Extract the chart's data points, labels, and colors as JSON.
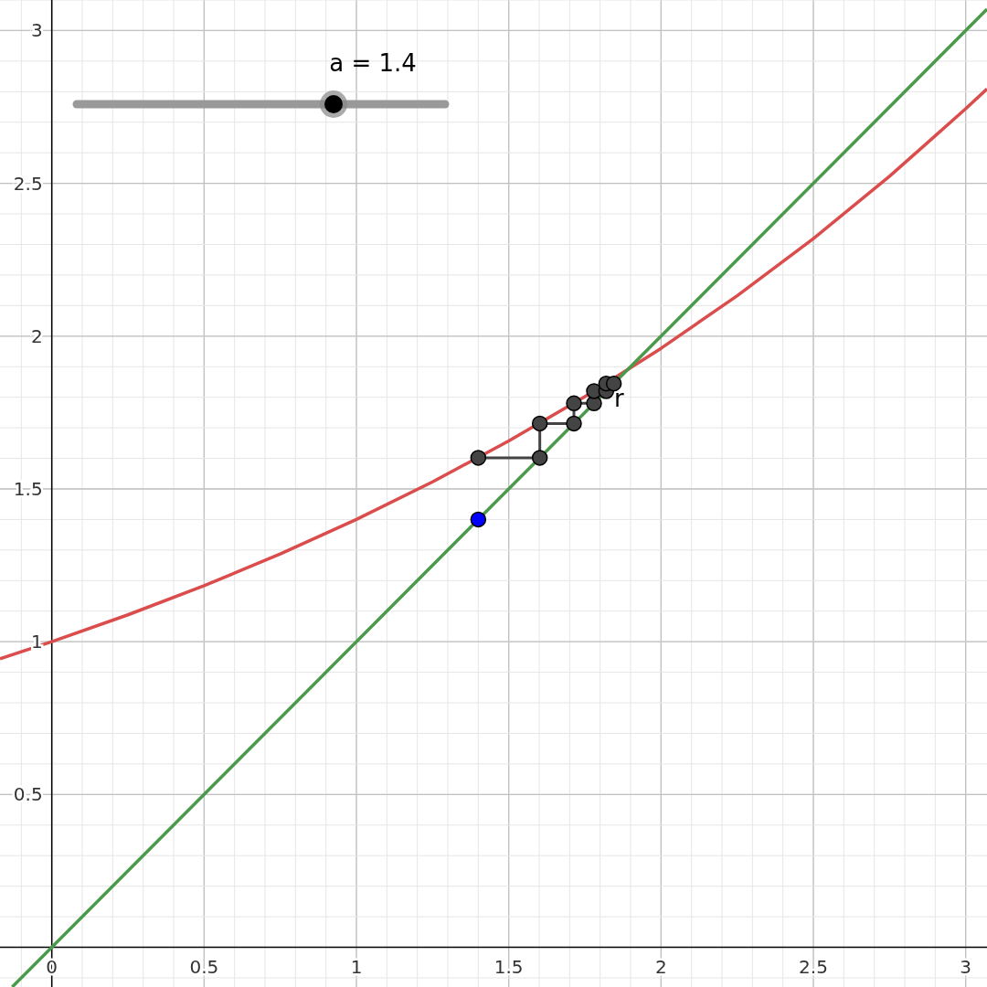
{
  "chart_data": {
    "type": "line",
    "xlim": [
      -0.17,
      3.07
    ],
    "ylim": [
      -0.13,
      3.1
    ],
    "xticks": [
      0,
      0.5,
      1,
      1.5,
      2,
      2.5,
      3
    ],
    "yticks": [
      0.5,
      1,
      1.5,
      2,
      2.5,
      3
    ],
    "grid": true,
    "series": [
      {
        "color": "#db4c4c",
        "marker": "none",
        "x": [
          -0.17,
          0,
          0.25,
          0.5,
          0.75,
          1,
          1.25,
          1.5,
          1.75,
          2,
          2.25,
          2.5,
          2.75,
          3,
          3.07
        ],
        "values": [
          0.944,
          1,
          1.088,
          1.183,
          1.287,
          1.4,
          1.523,
          1.657,
          1.802,
          1.96,
          2.132,
          2.319,
          2.523,
          2.744,
          2.809
        ]
      },
      {
        "color": "#4b9a4b",
        "marker": "none",
        "x": [
          -0.13,
          3.07
        ],
        "values": [
          -0.13,
          3.07
        ]
      },
      {
        "color": "#444444",
        "marker": "circle",
        "x": [
          1.4,
          1.602,
          1.602,
          1.714,
          1.714,
          1.78,
          1.78,
          1.82,
          1.82,
          1.845
        ],
        "values": [
          1.602,
          1.602,
          1.714,
          1.714,
          1.78,
          1.78,
          1.82,
          1.82,
          1.845,
          1.845
        ]
      },
      {
        "type": "scatter",
        "color": "#0000ff",
        "marker": "circle",
        "x": [
          1.4
        ],
        "values": [
          1.4
        ]
      }
    ],
    "annotations": [
      "a = 1.4",
      {
        "text": "r",
        "x": 1.85,
        "y": 1.8
      }
    ]
  }
}
